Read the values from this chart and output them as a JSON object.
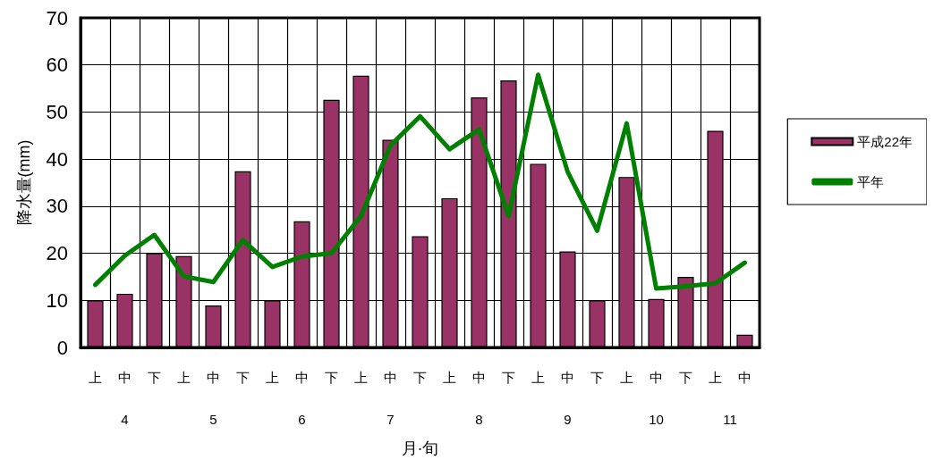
{
  "chart_data": {
    "type": "bar",
    "xlabel": "月·旬",
    "ylabel": "降水量(mm)",
    "categories": [
      "上",
      "中",
      "下",
      "上",
      "中",
      "下",
      "上",
      "中",
      "下",
      "上",
      "中",
      "下",
      "上",
      "中",
      "下",
      "上",
      "中",
      "下",
      "上",
      "中",
      "下",
      "上",
      "中"
    ],
    "annotations": [
      "4",
      "5",
      "6",
      "7",
      "8",
      "9",
      "10",
      "11"
    ],
    "series": [
      {
        "name": "平成22年",
        "color": "#993366",
        "values": [
          10,
          11.4,
          20,
          19.4,
          8.9,
          37.4,
          10,
          26.8,
          52.6,
          57.7,
          44.1,
          23.6,
          31.7,
          53.1,
          56.7,
          39,
          20.4,
          10,
          36.2,
          10.3,
          15,
          46,
          2.7
        ]
      },
      {
        "name": "平年",
        "type": "line",
        "color": "#008000",
        "values": [
          13.3,
          19.5,
          23.9,
          15.1,
          13.9,
          22.8,
          17.1,
          19.3,
          20,
          27.9,
          42.9,
          49.1,
          42.1,
          46.3,
          27.9,
          57.9,
          37.3,
          24.8,
          47.6,
          12.5,
          13,
          13.6,
          18
        ]
      }
    ],
    "ylim": [
      0,
      70
    ],
    "yticks": [
      0,
      10,
      20,
      30,
      40,
      50,
      60,
      70
    ],
    "grid": true,
    "legend": "right",
    "marker": "none",
    "line_style": "solid"
  }
}
